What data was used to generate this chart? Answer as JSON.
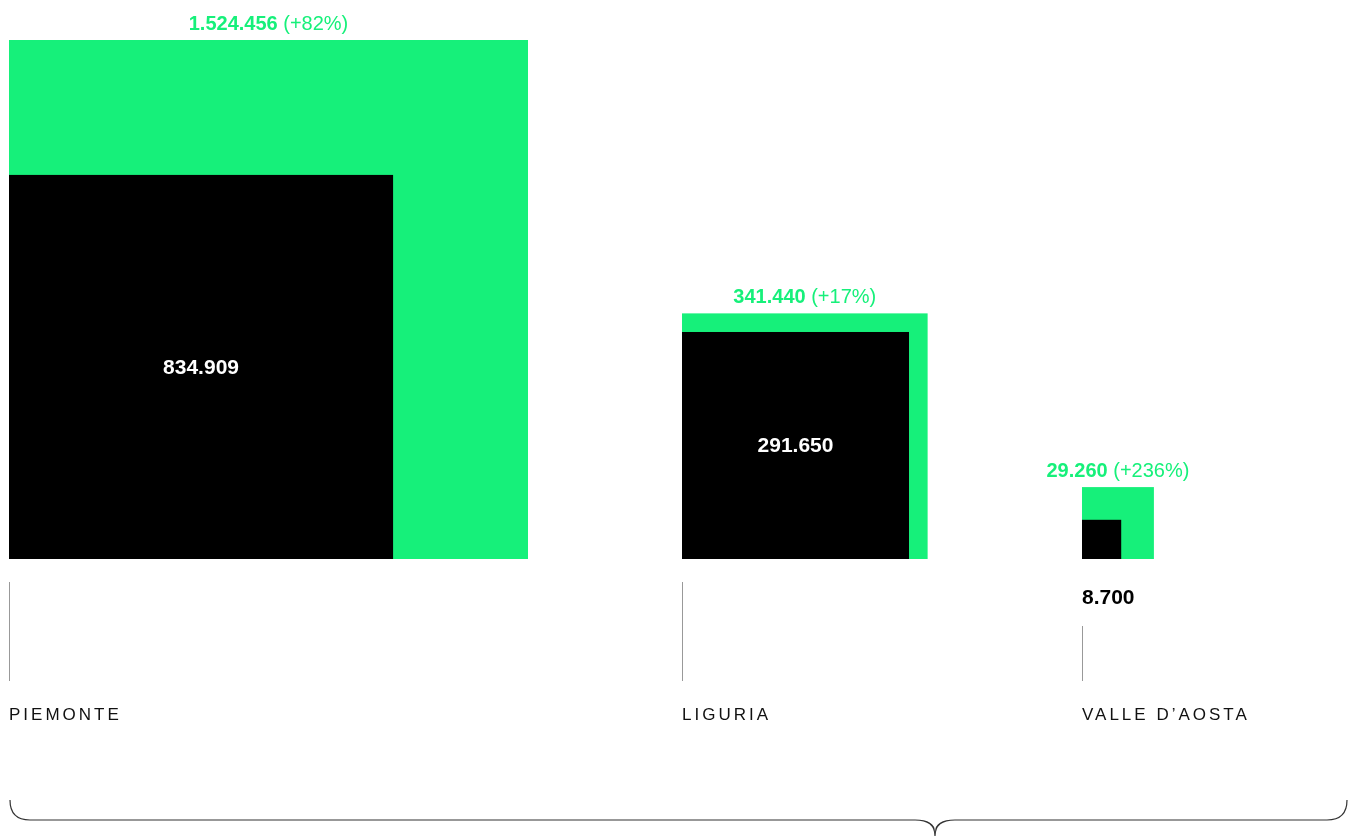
{
  "chart_data": {
    "type": "other",
    "categories": [
      "PIEMONTE",
      "LIGURIA",
      "VALLE D’AOSTA"
    ],
    "series": [
      {
        "color": "#000000",
        "values": [
          834909,
          291650,
          8700
        ],
        "value_labels": [
          "834.909",
          "291.650",
          "8.700"
        ]
      },
      {
        "color": "#16f07a",
        "values": [
          1524456,
          341440,
          29260
        ],
        "value_labels": [
          "1.524.456 (+82%)",
          "341.440 (+17%)",
          "29.260 (+236%)"
        ]
      }
    ]
  }
}
